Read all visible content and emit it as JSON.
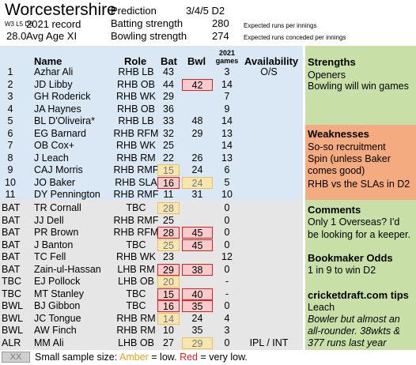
{
  "header": {
    "team": "Worcestershire",
    "record_small": "W3 L5 D6",
    "record_label": "2021 record",
    "age_value": "28.0",
    "age_label": "Avg Age XI",
    "prediction_label": "Prediction",
    "prediction_value": "3/4/5 D2",
    "batting_label": "Batting strength",
    "batting_value": "280",
    "batting_note": "Expected runs per innings",
    "bowling_label": "Bowling strength",
    "bowling_value": "274",
    "bowling_note": "Expected runs conceded per innings"
  },
  "columns": {
    "name": "Name",
    "role": "Role",
    "bat": "Bat",
    "bwl": "Bwl",
    "games_year": "2021",
    "games": "games",
    "availability": "Availability"
  },
  "xi": [
    {
      "n": "1",
      "name": "Azhar Ali",
      "role": "RHB LB",
      "bat": "43",
      "bwl": "",
      "games": "3",
      "avail": "O/S"
    },
    {
      "n": "2",
      "name": "JD Libby",
      "role": "RHB OB",
      "bat": "44",
      "bwl": "42",
      "games": "14",
      "avail": ""
    },
    {
      "n": "3",
      "name": "GH Roderick",
      "role": "RHB WK",
      "bat": "29",
      "bwl": "",
      "games": "7",
      "avail": ""
    },
    {
      "n": "4",
      "name": "JA Haynes",
      "role": "RHB OB",
      "bat": "36",
      "bwl": "",
      "games": "9",
      "avail": ""
    },
    {
      "n": "5",
      "name": "BL D'Oliveira*",
      "role": "RHB LB",
      "bat": "33",
      "bwl": "48",
      "games": "14",
      "avail": ""
    },
    {
      "n": "6",
      "name": "EG Barnard",
      "role": "RHB RFM",
      "bat": "32",
      "bwl": "29",
      "games": "13",
      "avail": ""
    },
    {
      "n": "7",
      "name": "OB Cox+",
      "role": "RHB WK",
      "bat": "25",
      "bwl": "",
      "games": "14",
      "avail": ""
    },
    {
      "n": "8",
      "name": "J Leach",
      "role": "RHB RM",
      "bat": "22",
      "bwl": "26",
      "games": "13",
      "avail": ""
    },
    {
      "n": "9",
      "name": "CAJ Morris",
      "role": "RHB RMF",
      "bat": "15",
      "bwl": "24",
      "games": "6",
      "avail": ""
    },
    {
      "n": "10",
      "name": "JO Baker",
      "role": "RHB SLA",
      "bat": "16",
      "bwl": "24",
      "games": "5",
      "avail": ""
    },
    {
      "n": "11",
      "name": "DY Pennington",
      "role": "RHB RMF",
      "bat": "11",
      "bwl": "31",
      "games": "10",
      "avail": ""
    }
  ],
  "squad": [
    {
      "tag": "BAT",
      "name": "TR Cornall",
      "role": "TBC",
      "bat": "28",
      "bwl": "",
      "games": "0",
      "avail": ""
    },
    {
      "tag": "BAT",
      "name": "JJ Dell",
      "role": "RHB RMF",
      "bat": "25",
      "bwl": "",
      "games": "0",
      "avail": ""
    },
    {
      "tag": "BAT",
      "name": "PR Brown",
      "role": "RHB RFM",
      "bat": "28",
      "bwl": "45",
      "games": "0",
      "avail": ""
    },
    {
      "tag": "BAT",
      "name": "J Banton",
      "role": "TBC",
      "bat": "25",
      "bwl": "45",
      "games": "0",
      "avail": ""
    },
    {
      "tag": "BAT",
      "name": "TC Fell",
      "role": "RHB WK",
      "bat": "23",
      "bwl": "",
      "games": "12",
      "avail": ""
    },
    {
      "tag": "BAT",
      "name": "Zain-ul-Hassan",
      "role": "LHB RM",
      "bat": "29",
      "bwl": "38",
      "games": "0",
      "avail": ""
    },
    {
      "tag": "TBC",
      "name": "EJ Pollock",
      "role": "LHB OB",
      "bat": "20",
      "bwl": "",
      "games": "-",
      "avail": ""
    },
    {
      "tag": "TBC",
      "name": "MT Stanley",
      "role": "TBC",
      "bat": "15",
      "bwl": "40",
      "games": "-",
      "avail": ""
    },
    {
      "tag": "BWL",
      "name": "BJ Gibbon",
      "role": "TBC",
      "bat": "16",
      "bwl": "35",
      "games": "0",
      "avail": ""
    },
    {
      "tag": "BWL",
      "name": "JC Tongue",
      "role": "RHB RM",
      "bat": "14",
      "bwl": "24",
      "games": "4",
      "avail": ""
    },
    {
      "tag": "BWL",
      "name": "AW Finch",
      "role": "RHB RM",
      "bat": "10",
      "bwl": "35",
      "games": "3",
      "avail": ""
    },
    {
      "tag": "ALR",
      "name": "MM Ali",
      "role": "LHB OB",
      "bat": "27",
      "bwl": "29",
      "games": "0",
      "avail": "IPL / INT"
    }
  ],
  "strengths": {
    "title": "Strengths",
    "items": [
      "Openers",
      "Bowling will win games"
    ]
  },
  "weaknesses": {
    "title": "Weaknesses",
    "items": [
      "So-so recruitment",
      "Spin (unless Baker comes good)",
      "RHB vs the SLAs in D2"
    ]
  },
  "comments": {
    "title": "Comments",
    "text": "Only 1 Overseas? I'd be looking for a keeper."
  },
  "odds": {
    "title": "Bookmaker Odds",
    "text": "1 in 9 to win D2"
  },
  "tips": {
    "title": "cricketdraft.com tips",
    "pick": "Leach",
    "note": "Bowler but almost an all-rounder. 38wkts & 377 runs last year"
  },
  "legend": {
    "box": "XX",
    "prefix": "Small sample size: ",
    "amber": "Amber",
    "mid": " = low. ",
    "red": "Red",
    "suffix": " = very low."
  },
  "colors": {
    "blue_panel": "#dae8f5",
    "grey_panel": "#e6e6e6",
    "green_panel": "#c8e0a8",
    "orange_panel": "#f4ab80",
    "red_flag": "#e02020",
    "amber_flag": "#e8c060"
  }
}
